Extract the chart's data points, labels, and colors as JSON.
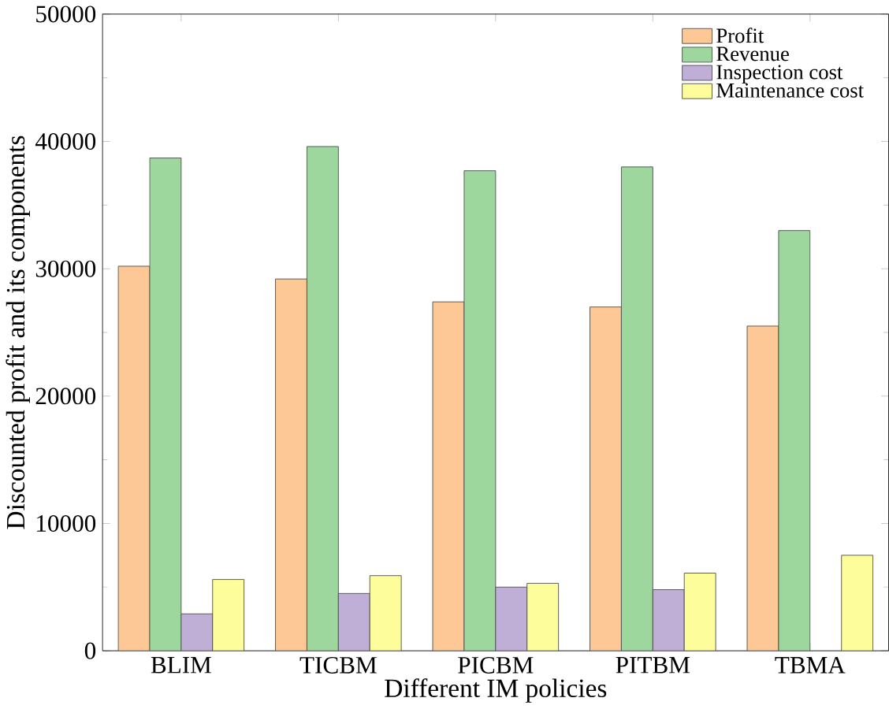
{
  "chart_data": {
    "type": "bar",
    "xlabel": "Different IM policies",
    "ylabel": "Discounted profit and its components",
    "categories": [
      "BLIM",
      "TICBM",
      "PICBM",
      "PITBM",
      "TBMA"
    ],
    "series": [
      {
        "name": "Profit",
        "color": "#fdc896",
        "values": [
          30200,
          29200,
          27400,
          27000,
          25500
        ]
      },
      {
        "name": "Revenue",
        "color": "#9dd79d",
        "values": [
          38700,
          39600,
          37700,
          38000,
          33000
        ]
      },
      {
        "name": "Inspection cost",
        "color": "#bfaed6",
        "values": [
          2900,
          4500,
          5000,
          4800,
          null
        ]
      },
      {
        "name": "Maintenance cost",
        "color": "#fdfd9c",
        "values": [
          5600,
          5900,
          5300,
          6100,
          7500
        ]
      }
    ],
    "ylim": [
      0,
      50000
    ],
    "yticks": [
      0,
      10000,
      20000,
      30000,
      40000,
      50000
    ],
    "grid": false,
    "legend": "top right"
  }
}
